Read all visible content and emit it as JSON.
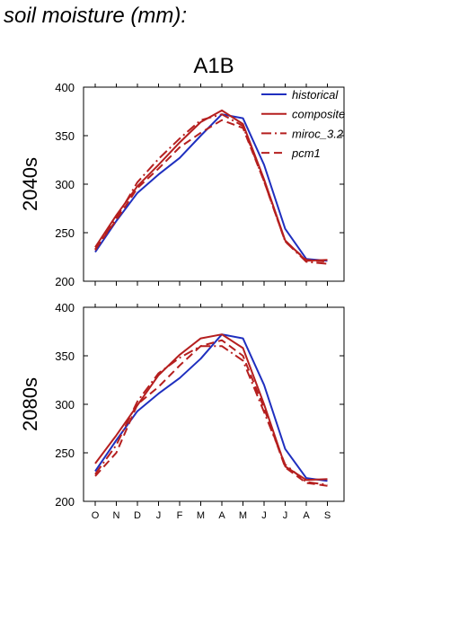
{
  "page_title": "soil moisture (mm):",
  "chart_data": {
    "type": "line",
    "title": "A1B",
    "categories": [
      "O",
      "N",
      "D",
      "J",
      "F",
      "M",
      "A",
      "M",
      "J",
      "J",
      "A",
      "S"
    ],
    "ylim": [
      200,
      400
    ],
    "yticks": [
      200,
      250,
      300,
      350,
      400
    ],
    "legend_placement": "top-right",
    "styles": {
      "historical": {
        "color": "#1f2fbf",
        "dash": ""
      },
      "composite": {
        "color": "#b51f1f",
        "dash": ""
      },
      "miroc_3.2": {
        "color": "#b51f1f",
        "dash": "11,4,2,4"
      },
      "pcm1": {
        "color": "#b51f1f",
        "dash": "9,5"
      }
    },
    "panels": [
      {
        "label": "2040s",
        "series": [
          {
            "name": "historical",
            "values": [
              230,
              262,
              291,
              310,
              327,
              350,
              372,
              368,
              320,
              254,
              223,
              221
            ]
          },
          {
            "name": "composite",
            "values": [
              235,
              268,
              298,
              320,
              343,
              364,
              376,
              362,
              305,
              242,
              221,
              222
            ]
          },
          {
            "name": "miroc_3.2",
            "values": [
              232,
              265,
              302,
              326,
              347,
              366,
              372,
              360,
              303,
              241,
              220,
              218
            ]
          },
          {
            "name": "pcm1",
            "values": [
              233,
              263,
              296,
              316,
              338,
              353,
              366,
              358,
              303,
              241,
              222,
              220
            ]
          }
        ]
      },
      {
        "label": "2080s",
        "series": [
          {
            "name": "historical",
            "values": [
              231,
              263,
              293,
              311,
              327,
              347,
              372,
              368,
              320,
              254,
              224,
              221
            ]
          },
          {
            "name": "composite",
            "values": [
              239,
              268,
              299,
              330,
              351,
              368,
              372,
              358,
              300,
              236,
              222,
              223
            ]
          },
          {
            "name": "miroc_3.2",
            "values": [
              228,
              258,
              303,
              332,
              348,
              360,
              360,
              345,
              292,
              238,
              220,
              217
            ]
          },
          {
            "name": "pcm1",
            "values": [
              226,
              250,
              300,
              318,
              340,
              360,
              366,
              350,
              296,
              235,
              219,
              216
            ]
          }
        ]
      }
    ]
  }
}
